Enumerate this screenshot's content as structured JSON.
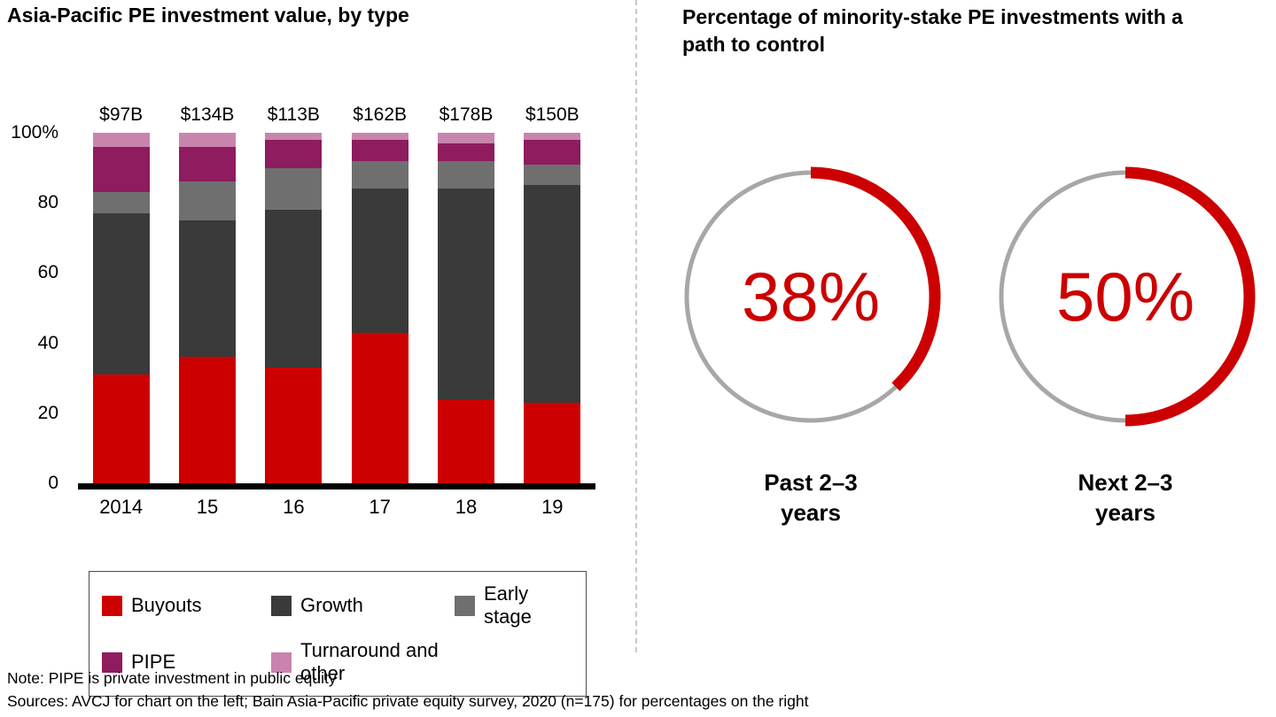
{
  "footer": {
    "note": "Note: PIPE is private investment in public equity",
    "sources": "Sources: AVCJ for chart on the left; Bain Asia-Pacific private equity survey, 2020 (n=175) for percentages on the right"
  },
  "chart_data": [
    {
      "type": "bar",
      "variant": "stacked-100-percent",
      "title": "Asia-Pacific PE investment value, by type",
      "categories": [
        "2014",
        "15",
        "16",
        "17",
        "18",
        "19"
      ],
      "bar_totals": [
        "$97B",
        "$134B",
        "$113B",
        "$162B",
        "$178B",
        "$150B"
      ],
      "series": [
        {
          "name": "Buyouts",
          "color": "#cc0000",
          "values": [
            31,
            36,
            33,
            43,
            24,
            23
          ]
        },
        {
          "name": "Growth",
          "color": "#3a3a3a",
          "values": [
            46,
            39,
            45,
            41,
            60,
            62
          ]
        },
        {
          "name": "Early stage",
          "color": "#6f6f6f",
          "values": [
            6,
            11,
            12,
            8,
            8,
            6
          ]
        },
        {
          "name": "PIPE",
          "color": "#8e1c5e",
          "values": [
            13,
            10,
            8,
            6,
            5,
            7
          ]
        },
        {
          "name": "Turnaround and other",
          "color": "#c984ae",
          "values": [
            4,
            4,
            2,
            2,
            3,
            2
          ]
        }
      ],
      "yticks": [
        {
          "label": "100%",
          "value": 100
        },
        {
          "label": "80",
          "value": 80
        },
        {
          "label": "60",
          "value": 60
        },
        {
          "label": "40",
          "value": 40
        },
        {
          "label": "20",
          "value": 20
        },
        {
          "label": "0",
          "value": 0
        }
      ],
      "ylim": [
        0,
        100
      ],
      "xlabel": "",
      "ylabel": "",
      "grid": false,
      "legend_position": "bottom"
    },
    {
      "type": "donut",
      "title": "Percentage of minority-stake PE investments with a path to control",
      "accent_color": "#cc0000",
      "track_color": "#a7a7a7",
      "gauges": [
        {
          "value": 38,
          "label": "38%",
          "caption_line1": "Past 2–3",
          "caption_line2": "years"
        },
        {
          "value": 50,
          "label": "50%",
          "caption_line1": "Next 2–3",
          "caption_line2": "years"
        }
      ]
    }
  ]
}
